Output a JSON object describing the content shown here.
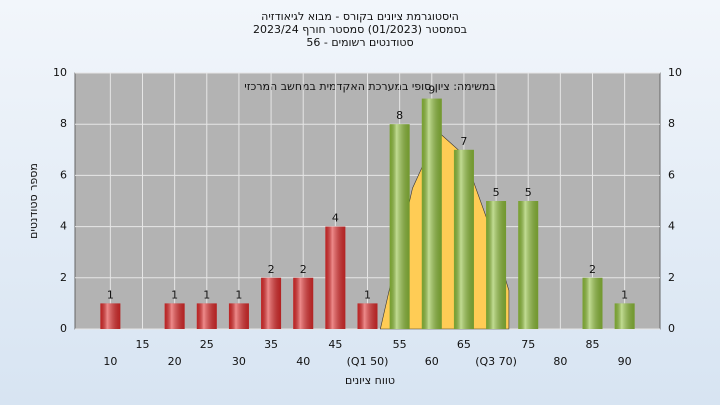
{
  "chart_data": {
    "type": "bar",
    "title": [
      "היסטוגרמת ציונים בקורס - מבוא לגיאודזיה",
      "בסמסטר  (01/2023)  סמסטר חורף 2023/24",
      "סטודנטים רשומים - 56"
    ],
    "annotation": "במשימה: ציון סופי במערכת האקדמית במחשב המרכזי",
    "x_label": "טווח ציונים",
    "y_label": "מספר סטודנטים",
    "x": [
      10,
      20,
      25,
      30,
      35,
      40,
      45,
      50,
      55,
      60,
      65,
      70,
      75,
      85,
      90
    ],
    "values": [
      1,
      1,
      1,
      1,
      2,
      2,
      4,
      1,
      8,
      9,
      7,
      5,
      5,
      2,
      1
    ],
    "colors": [
      "#e02b2b",
      "#e02b2b",
      "#e02b2b",
      "#e02b2b",
      "#e02b2b",
      "#e02b2b",
      "#e02b2b",
      "#e02b2b",
      "#8fbf3a",
      "#8fbf3a",
      "#8fbf3a",
      "#8fbf3a",
      "#8fbf3a",
      "#8fbf3a",
      "#8fbf3a"
    ],
    "curve": {
      "color": "#ffcc55",
      "x": [
        52,
        57,
        61,
        65,
        69,
        72
      ],
      "y": [
        0,
        5.5,
        7.7,
        6.8,
        4,
        1.5
      ]
    },
    "xlim": [
      4.5,
      95.5
    ],
    "xticks": [
      10,
      15,
      20,
      25,
      30,
      35,
      40,
      45,
      {
        "value": 50,
        "label": "(Q1 50)"
      },
      55,
      60,
      65,
      {
        "value": 70,
        "label": "(Q3 70)"
      },
      75,
      80,
      85,
      90
    ],
    "ylim": [
      0,
      10
    ],
    "yticks": [
      0,
      2,
      4,
      6,
      8,
      10
    ],
    "grid": true
  }
}
